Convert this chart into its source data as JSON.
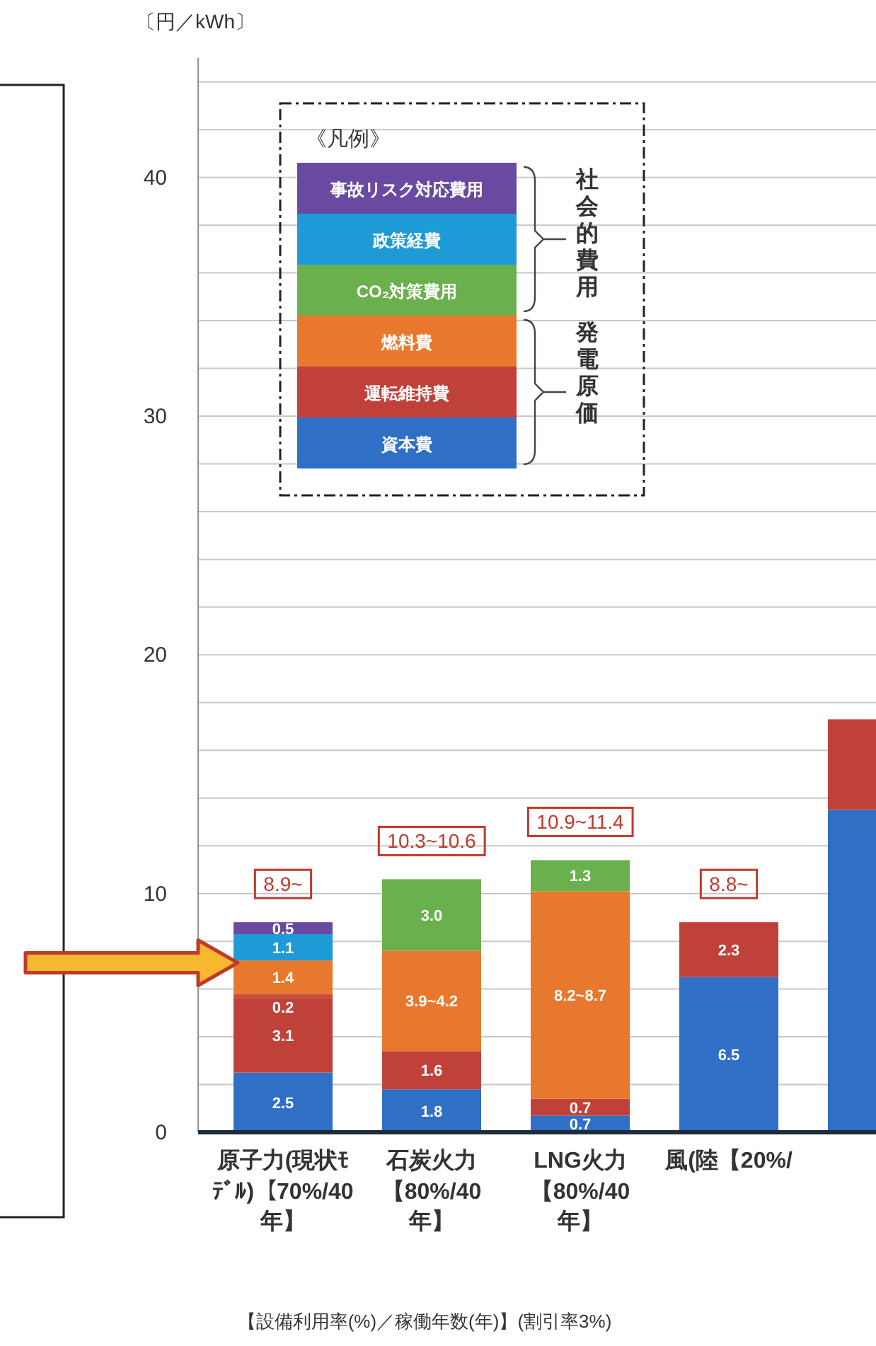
{
  "chart_data": {
    "type": "bar",
    "stacked": true,
    "ylabel": "〔円／kWh〕",
    "legend_title": "《凡例》",
    "legend": "top left",
    "grid": true,
    "categories": [
      "原子力(現状ﾓﾃﾞﾙ)【70%/40年】",
      "石炭火力【80%/40年】",
      "LNG火力【80%/40年】",
      "風(陸【20%/",
      null
    ],
    "ylim": [
      0,
      45
    ],
    "yticks": [
      0,
      {
        "value": 2,
        "label": null
      },
      {
        "value": 4,
        "label": null
      },
      {
        "value": 6,
        "label": null
      },
      {
        "value": 8,
        "label": null
      },
      10,
      {
        "value": 12,
        "label": null
      },
      {
        "value": 14,
        "label": null
      },
      {
        "value": 16,
        "label": null
      },
      {
        "value": 18,
        "label": null
      },
      20,
      {
        "value": 22,
        "label": null
      },
      {
        "value": 24,
        "label": null
      },
      {
        "value": 26,
        "label": null
      },
      {
        "value": 28,
        "label": null
      },
      30,
      {
        "value": 32,
        "label": null
      },
      {
        "value": 34,
        "label": null
      },
      {
        "value": 36,
        "label": null
      },
      {
        "value": 38,
        "label": null
      },
      40,
      {
        "value": 42,
        "label": null
      },
      {
        "value": 44,
        "label": null
      }
    ],
    "series": [
      {
        "name": "資本費",
        "color": "#2f6fc6",
        "values": [
          2.5,
          1.8,
          0.7,
          6.5,
          13.5
        ],
        "value_labels": [
          "2.5",
          "1.8",
          "0.7",
          "6.5",
          null
        ]
      },
      {
        "name": "運転維持費",
        "color": "#c0413a",
        "values": [
          3.1,
          1.6,
          0.7,
          2.3,
          3.8
        ],
        "value_labels": [
          "3.1",
          "1.6",
          "0.7",
          "2.3",
          null
        ]
      },
      {
        "color": "#c9503a",
        "values": [
          0.2,
          null,
          null,
          null,
          null
        ],
        "value_labels": [
          "0.2",
          null,
          null,
          null,
          null
        ]
      },
      {
        "name": "燃料費",
        "color": "#e8782e",
        "values": [
          1.4,
          4.2,
          8.7,
          null,
          null
        ],
        "value_labels": [
          "1.4",
          "3.9~4.2",
          "8.2~8.7",
          null,
          null
        ]
      },
      {
        "name": "CO₂対策費用",
        "color": "#6ab04c",
        "values": [
          null,
          3.0,
          1.3,
          null,
          null
        ],
        "value_labels": [
          null,
          "3.0",
          "1.3",
          null,
          null
        ]
      },
      {
        "name": "政策経費",
        "color": "#1e9ad6",
        "values": [
          1.1,
          null,
          null,
          null,
          null
        ],
        "value_labels": [
          "1.1",
          null,
          null,
          null,
          null
        ]
      },
      {
        "name": "事故リスク対応費用",
        "color": "#6a4aa0",
        "values": [
          0.5,
          null,
          null,
          null,
          null
        ],
        "value_labels": [
          "0.5",
          null,
          null,
          null,
          null
        ]
      }
    ],
    "totals": [
      "8.9~",
      "10.3~10.6",
      "10.9~11.4",
      "8.8~",
      null
    ],
    "annotations": [
      "【設備利用率(%)／稼働年数(年)】(割引率3%)",
      "社会的費用",
      "発電原価"
    ]
  }
}
